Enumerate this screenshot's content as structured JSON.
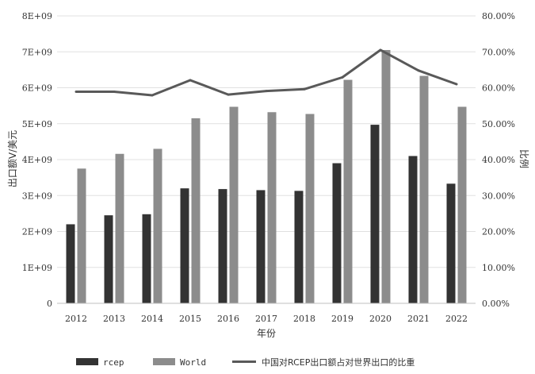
{
  "chart_data": {
    "type": "bar",
    "title": "",
    "categories": [
      "2012",
      "2013",
      "2014",
      "2015",
      "2016",
      "2017",
      "2018",
      "2019",
      "2020",
      "2021",
      "2022"
    ],
    "series": [
      {
        "name": "rcep",
        "type": "bar",
        "axis": "left",
        "color": "#333333",
        "values": [
          2200000000.0,
          2450000000.0,
          2480000000.0,
          3200000000.0,
          3180000000.0,
          3150000000.0,
          3130000000.0,
          3900000000.0,
          4970000000.0,
          4100000000.0,
          3330000000.0
        ]
      },
      {
        "name": "World",
        "type": "bar",
        "axis": "left",
        "color": "#8c8c8c",
        "values": [
          3750000000.0,
          4160000000.0,
          4300000000.0,
          5150000000.0,
          5470000000.0,
          5320000000.0,
          5270000000.0,
          6220000000.0,
          7050000000.0,
          6330000000.0,
          5470000000.0
        ]
      },
      {
        "name": "中国对RCEP出口额占对世界出口的比重",
        "type": "line",
        "axis": "right",
        "color": "#595959",
        "values": [
          58.9,
          58.9,
          57.9,
          62.1,
          58.1,
          59.1,
          59.6,
          62.9,
          70.5,
          64.8,
          61.0
        ]
      }
    ],
    "xlabel": "年份",
    "ylabel": "出口额V/美元",
    "y2label": "比例",
    "ylim": [
      0,
      8000000000.0
    ],
    "y2lim": [
      0,
      80
    ],
    "yticks": [
      "0",
      "1E+09",
      "2E+09",
      "3E+09",
      "4E+09",
      "5E+09",
      "6E+09",
      "7E+09",
      "8E+09"
    ],
    "y2ticks": [
      "0.00%",
      "10.00%",
      "20.00%",
      "30.00%",
      "40.00%",
      "50.00%",
      "60.00%",
      "70.00%",
      "80.00%"
    ],
    "grid": true,
    "legend_position": "bottom"
  }
}
